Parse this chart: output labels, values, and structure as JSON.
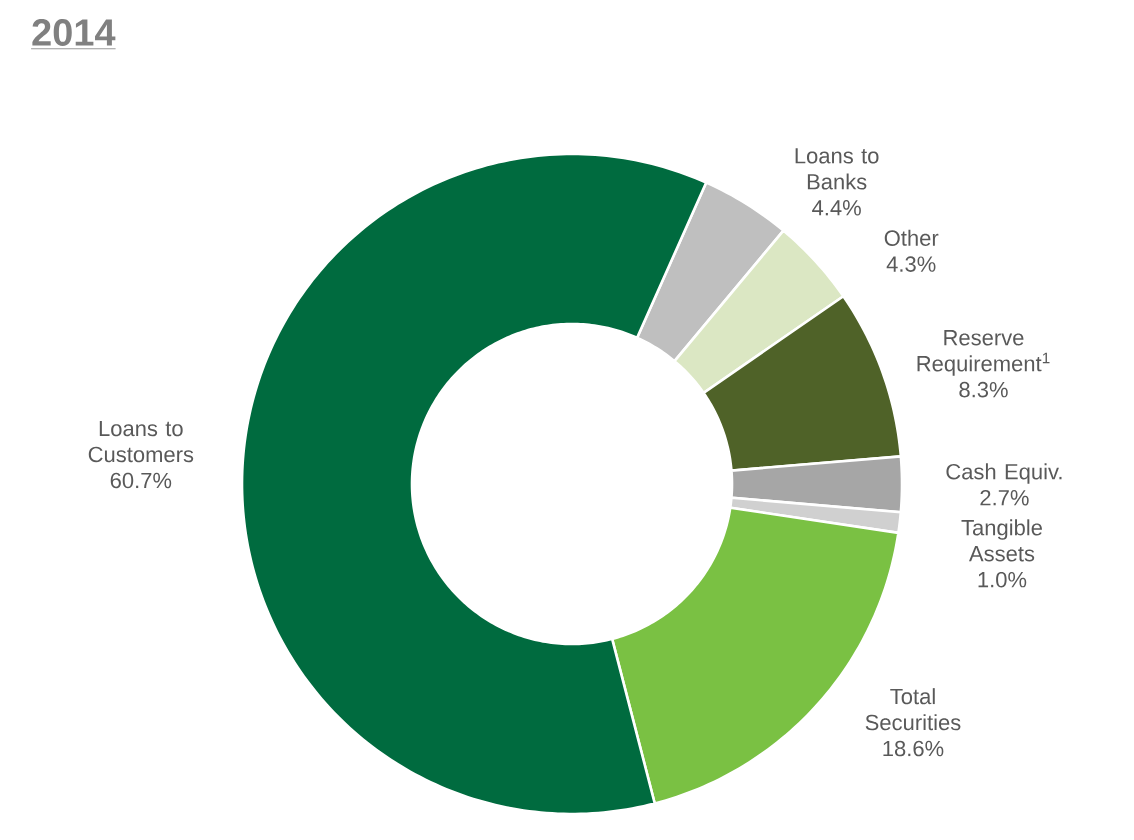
{
  "chart_data": {
    "type": "donut",
    "title": "2014",
    "categories": [
      "Loans to Banks",
      "Other",
      "Reserve Requirement$^{1}$",
      "Cash Equiv.",
      "Tangible Assets",
      "Total Securities",
      "Loans to Customers"
    ],
    "values": [
      4.4,
      4.3,
      8.3,
      2.7,
      1.0,
      18.6,
      60.7
    ],
    "value_labels": [
      "4.4%",
      "4.3%",
      "8.3%",
      "2.7%",
      "1.0%",
      "18.6%",
      "60.7%"
    ],
    "colors": [
      "#bfbfbf",
      "#dbe7c3",
      "#4f6228",
      "#a6a6a6",
      "#d0d0d0",
      "#7ac143",
      "#006b3f"
    ]
  }
}
